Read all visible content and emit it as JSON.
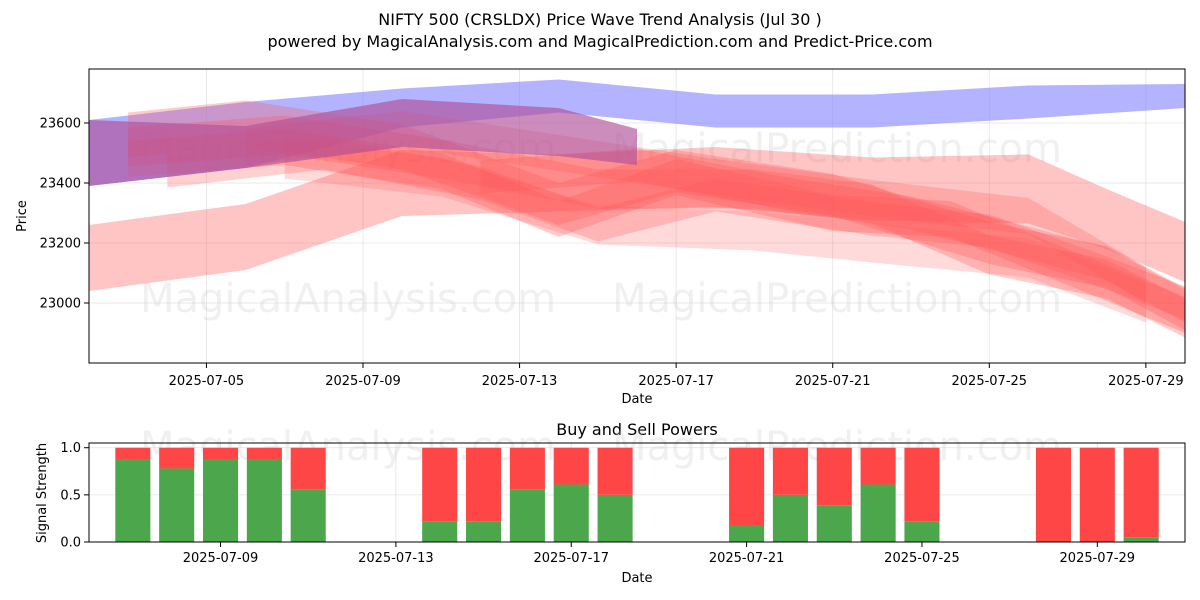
{
  "header": {
    "title": "NIFTY 500 (CRSLDX) Price Wave Trend Analysis (Jul 30 )",
    "subtitle": "powered by MagicalAnalysis.com and MagicalPrediction.com and Predict-Price.com"
  },
  "watermarks": [
    "MagicalAnalysis.com",
    "MagicalPrediction.com"
  ],
  "colors": {
    "buy": "#4ca64c",
    "sell": "#ff4646",
    "blue_wave": "#8080ff",
    "red_wave": "#ff5555",
    "purple_wave": "#b0509a"
  },
  "chart_data": [
    {
      "type": "area",
      "title": "",
      "xlabel": "Date",
      "ylabel": "Price",
      "xlim": [
        "2025-07-02",
        "2025-07-30"
      ],
      "ylim": [
        22800,
        23780
      ],
      "x_ticks": [
        "2025-07-05",
        "2025-07-09",
        "2025-07-13",
        "2025-07-17",
        "2025-07-21",
        "2025-07-25",
        "2025-07-29"
      ],
      "y_ticks": [
        23000,
        23200,
        23400,
        23600
      ],
      "grid": true,
      "series": [
        {
          "color": "blue",
          "opacity": 0.6,
          "points": [
            [
              "2025-07-02",
              23500
            ],
            [
              "2025-07-06",
              23560
            ],
            [
              "2025-07-10",
              23650
            ],
            [
              "2025-07-14",
              23690
            ],
            [
              "2025-07-18",
              23640
            ],
            [
              "2025-07-22",
              23640
            ],
            [
              "2025-07-26",
              23670
            ],
            [
              "2025-07-30",
              23690
            ]
          ],
          "width": [
            220,
            220,
            130,
            110,
            110,
            110,
            110,
            80
          ]
        },
        {
          "color": "purple",
          "opacity": 0.65,
          "points": [
            [
              "2025-07-02",
              23500
            ],
            [
              "2025-07-06",
              23520
            ],
            [
              "2025-07-10",
              23600
            ],
            [
              "2025-07-14",
              23570
            ],
            [
              "2025-07-16",
              23520
            ]
          ],
          "width": [
            220,
            140,
            160,
            160,
            120
          ]
        },
        {
          "color": "red",
          "opacity": 0.35,
          "points": [
            [
              "2025-07-02",
              23150
            ],
            [
              "2025-07-06",
              23220
            ],
            [
              "2025-07-10",
              23400
            ],
            [
              "2025-07-14",
              23400
            ],
            [
              "2025-07-18",
              23420
            ],
            [
              "2025-07-22",
              23380
            ],
            [
              "2025-07-26",
              23380
            ],
            [
              "2025-07-28",
              23280
            ],
            [
              "2025-07-30",
              23170
            ]
          ],
          "width": [
            220,
            220,
            220,
            190,
            200,
            210,
            230,
            200,
            200
          ]
        },
        {
          "color": "red",
          "opacity": 0.3,
          "points": [
            [
              "2025-07-03",
              23560
            ],
            [
              "2025-07-06",
              23600
            ],
            [
              "2025-07-10",
              23520
            ],
            [
              "2025-07-14",
              23330
            ],
            [
              "2025-07-17",
              23440
            ],
            [
              "2025-07-21",
              23360
            ],
            [
              "2025-07-25",
              23200
            ],
            [
              "2025-07-28",
              23120
            ],
            [
              "2025-07-30",
              22980
            ]
          ],
          "width": [
            150,
            150,
            150,
            140,
            140,
            140,
            140,
            140,
            140
          ]
        },
        {
          "color": "red",
          "opacity": 0.3,
          "points": [
            [
              "2025-07-03",
              23520
            ],
            [
              "2025-07-07",
              23560
            ],
            [
              "2025-07-11",
              23480
            ],
            [
              "2025-07-15",
              23380
            ],
            [
              "2025-07-19",
              23380
            ],
            [
              "2025-07-22",
              23330
            ],
            [
              "2025-07-25",
              23160
            ],
            [
              "2025-07-28",
              23080
            ],
            [
              "2025-07-30",
              22950
            ]
          ],
          "width": [
            130,
            130,
            130,
            130,
            130,
            130,
            130,
            130,
            130
          ]
        },
        {
          "color": "red",
          "opacity": 0.3,
          "points": [
            [
              "2025-07-03",
              23480
            ],
            [
              "2025-07-07",
              23520
            ],
            [
              "2025-07-11",
              23440
            ],
            [
              "2025-07-14",
              23280
            ],
            [
              "2025-07-17",
              23420
            ],
            [
              "2025-07-21",
              23300
            ],
            [
              "2025-07-24",
              23280
            ],
            [
              "2025-07-27",
              23120
            ],
            [
              "2025-07-30",
              22960
            ]
          ],
          "width": [
            120,
            120,
            120,
            120,
            120,
            120,
            120,
            120,
            120
          ]
        },
        {
          "color": "red",
          "opacity": 0.28,
          "points": [
            [
              "2025-07-04",
              23440
            ],
            [
              "2025-07-08",
              23500
            ],
            [
              "2025-07-12",
              23400
            ],
            [
              "2025-07-15",
              23260
            ],
            [
              "2025-07-18",
              23360
            ],
            [
              "2025-07-22",
              23280
            ],
            [
              "2025-07-25",
              23240
            ],
            [
              "2025-07-28",
              23100
            ],
            [
              "2025-07-30",
              23000
            ]
          ],
          "width": [
            110,
            110,
            110,
            110,
            110,
            110,
            110,
            110,
            110
          ]
        },
        {
          "color": "red",
          "opacity": 0.25,
          "points": [
            [
              "2025-07-06",
              23520
            ],
            [
              "2025-07-10",
              23580
            ],
            [
              "2025-07-14",
              23500
            ],
            [
              "2025-07-18",
              23420
            ],
            [
              "2025-07-22",
              23350
            ],
            [
              "2025-07-26",
              23290
            ],
            [
              "2025-07-29",
              23060
            ]
          ],
          "width": [
            120,
            120,
            120,
            120,
            120,
            120,
            120
          ]
        },
        {
          "color": "red",
          "opacity": 0.22,
          "points": [
            [
              "2025-07-07",
              23480
            ],
            [
              "2025-07-11",
              23420
            ],
            [
              "2025-07-15",
              23260
            ],
            [
              "2025-07-19",
              23240
            ],
            [
              "2025-07-22",
              23200
            ],
            [
              "2025-07-26",
              23150
            ],
            [
              "2025-07-29",
              23000
            ]
          ],
          "width": [
            130,
            130,
            130,
            130,
            130,
            130,
            130
          ]
        },
        {
          "color": "red",
          "opacity": 0.3,
          "points": [
            [
              "2025-07-12",
              23420
            ],
            [
              "2025-07-16",
              23460
            ],
            [
              "2025-07-20",
              23360
            ],
            [
              "2025-07-23",
              23300
            ],
            [
              "2025-07-26",
              23200
            ],
            [
              "2025-07-28",
              23130
            ],
            [
              "2025-07-30",
              22990
            ]
          ],
          "width": [
            110,
            110,
            110,
            110,
            110,
            110,
            110
          ]
        }
      ]
    },
    {
      "type": "bar",
      "title": "Buy and Sell Powers",
      "xlabel": "Date",
      "ylabel": "Signal Strength",
      "ylim": [
        0,
        1.05
      ],
      "x_ticks": [
        "2025-07-09",
        "2025-07-13",
        "2025-07-17",
        "2025-07-21",
        "2025-07-25",
        "2025-07-29"
      ],
      "y_ticks": [
        0.0,
        0.5,
        1.0
      ],
      "categories": [
        "2025-07-07",
        "2025-07-08",
        "2025-07-09",
        "2025-07-10",
        "2025-07-11",
        "2025-07-14",
        "2025-07-15",
        "2025-07-16",
        "2025-07-17",
        "2025-07-18",
        "2025-07-21",
        "2025-07-22",
        "2025-07-23",
        "2025-07-24",
        "2025-07-25",
        "2025-07-28",
        "2025-07-29",
        "2025-07-30"
      ],
      "series": [
        {
          "values": [
            0.88,
            0.78,
            0.88,
            0.88,
            0.56,
            0.22,
            0.22,
            0.56,
            0.61,
            0.5,
            0.17,
            0.5,
            0.39,
            0.61,
            0.22,
            0.0,
            0.0,
            0.05
          ]
        },
        {
          "values": [
            0.12,
            0.22,
            0.12,
            0.12,
            0.44,
            0.78,
            0.78,
            0.44,
            0.39,
            0.5,
            0.83,
            0.5,
            0.61,
            0.39,
            0.78,
            1.0,
            1.0,
            0.95
          ]
        }
      ]
    }
  ]
}
